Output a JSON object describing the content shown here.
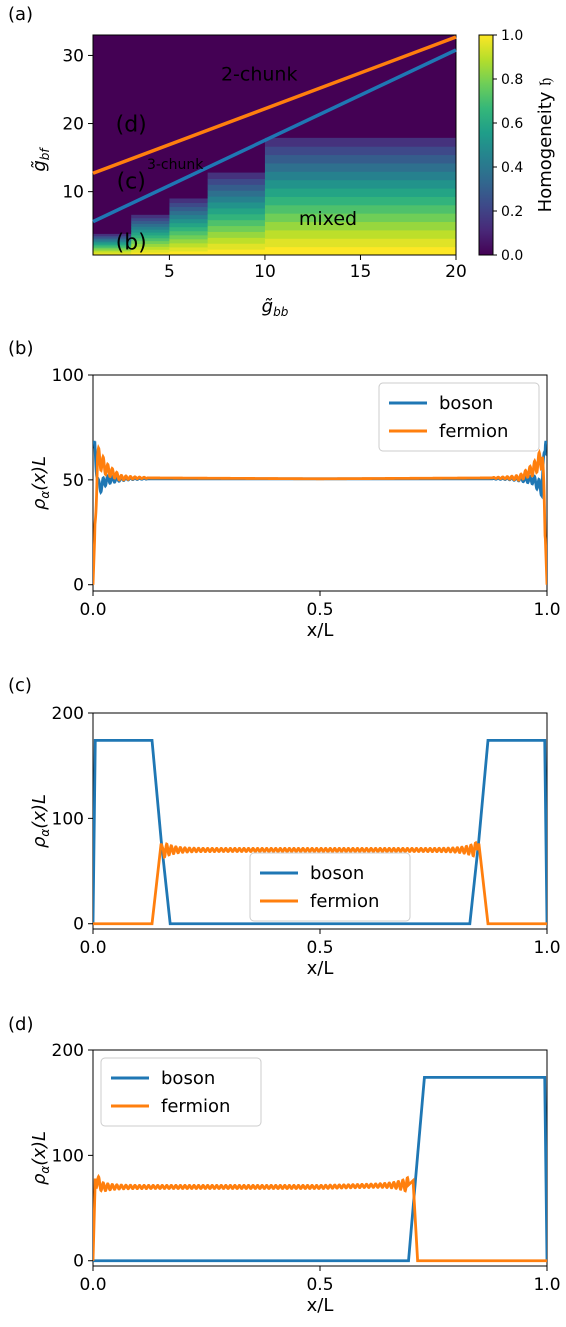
{
  "colors": {
    "boson": "#1f77b4",
    "fermion": "#ff7f0e",
    "boundary_upper": "#ff7f0e",
    "boundary_lower": "#1f77b4",
    "region_label": "#ffffff",
    "point_label": "#e31a1c",
    "viridis": [
      "#440154",
      "#482878",
      "#3e4989",
      "#31688e",
      "#26828e",
      "#1f9e89",
      "#35b779",
      "#6ece58",
      "#b5de2b",
      "#fde725"
    ]
  },
  "chart_data": [
    {
      "panel": "(a)",
      "type": "heatmap",
      "xlabel": "g̃_bb",
      "ylabel": "g̃_bf",
      "xlim": [
        1,
        20
      ],
      "ylim": [
        0.7,
        33
      ],
      "xticks": [
        "5",
        "10",
        "15",
        "20"
      ],
      "yticks": [
        "10",
        "20",
        "30"
      ],
      "colorbar": {
        "label": "Homogeneity 𝔥",
        "range": [
          0.0,
          1.0
        ],
        "ticks": [
          "0.0",
          "0.2",
          "0.4",
          "0.6",
          "0.8",
          "1.0"
        ]
      },
      "regions": [
        {
          "x_from": 1,
          "x_to": 3,
          "g_top": 3.8
        },
        {
          "x_from": 3,
          "x_to": 5,
          "g_top": 6.6
        },
        {
          "x_from": 5,
          "x_to": 7,
          "g_top": 9.0
        },
        {
          "x_from": 7,
          "x_to": 10,
          "g_top": 12.8
        },
        {
          "x_from": 10,
          "x_to": 20,
          "g_top": 17.9
        }
      ],
      "boundaries": [
        {
          "name": "2-chunk boundary",
          "color_key": "boundary_upper",
          "x": [
            1,
            20
          ],
          "y": [
            12.7,
            32.7
          ]
        },
        {
          "name": "3-chunk boundary",
          "color_key": "boundary_lower",
          "x": [
            1,
            20
          ],
          "y": [
            5.6,
            30.8
          ]
        }
      ],
      "region_labels": [
        {
          "text": "2-chunk",
          "x": 9.7,
          "y": 26.3,
          "size": "big"
        },
        {
          "text": "3-chunk",
          "x": 5.3,
          "y": 13.3,
          "size": "small"
        },
        {
          "text": "mixed",
          "x": 13.3,
          "y": 5.1,
          "size": "big"
        }
      ],
      "point_labels": [
        {
          "text": "(d)",
          "x": 3.0,
          "y": 18.8
        },
        {
          "text": "(c)",
          "x": 3.0,
          "y": 10.5
        },
        {
          "text": "(b)",
          "x": 3.0,
          "y": 1.5
        }
      ]
    },
    {
      "panel": "(b)",
      "type": "line",
      "xlabel": "x/L",
      "ylabel": "ρ_α(x)L",
      "xlim": [
        0,
        1
      ],
      "ylim": [
        -3,
        100
      ],
      "xticks": [
        0,
        0.5,
        1
      ],
      "xtick_labels": [
        "0.0",
        "0.5",
        "1.0"
      ],
      "yticks": [
        0,
        50,
        100
      ],
      "legend": "top-right",
      "series": [
        {
          "name": "boson",
          "color_key": "boson",
          "x": [
            0,
            0.003,
            0.012,
            0.03,
            0.08,
            0.5,
            0.92,
            0.97,
            0.988,
            0.997,
            1
          ],
          "y": [
            68,
            68,
            46,
            50,
            50.5,
            50.5,
            50.5,
            50,
            46,
            68,
            68
          ]
        },
        {
          "name": "fermion",
          "color_key": "fermion",
          "x": [
            0,
            0.01,
            0.03,
            0.06,
            0.5,
            0.94,
            0.97,
            0.99,
            1
          ],
          "y": [
            0,
            61,
            55,
            51,
            50.5,
            51,
            55,
            61,
            0
          ]
        }
      ]
    },
    {
      "panel": "(c)",
      "type": "line",
      "xlabel": "x/L",
      "ylabel": "ρ_α(x)L",
      "xlim": [
        0,
        1
      ],
      "ylim": [
        -5,
        200
      ],
      "xticks": [
        0,
        0.5,
        1
      ],
      "xtick_labels": [
        "0.0",
        "0.5",
        "1.0"
      ],
      "yticks": [
        0,
        100,
        200
      ],
      "legend": "bottom-center",
      "series": [
        {
          "name": "boson",
          "color_key": "boson",
          "x": [
            0,
            0.005,
            0.13,
            0.15,
            0.17,
            0.83,
            0.85,
            0.87,
            0.995,
            1
          ],
          "y": [
            0,
            174,
            174,
            80,
            0,
            0,
            80,
            174,
            174,
            0
          ]
        },
        {
          "name": "fermion",
          "color_key": "fermion",
          "x": [
            0,
            0.13,
            0.15,
            0.155,
            0.5,
            0.845,
            0.85,
            0.87,
            1
          ],
          "y": [
            0,
            0,
            76,
            70,
            70,
            70,
            76,
            0,
            0
          ]
        }
      ]
    },
    {
      "panel": "(d)",
      "type": "line",
      "xlabel": "x/L",
      "ylabel": "ρ_α(x)L",
      "xlim": [
        0,
        1
      ],
      "ylim": [
        -5,
        200
      ],
      "xticks": [
        0,
        0.5,
        1
      ],
      "xtick_labels": [
        "0.0",
        "0.5",
        "1.0"
      ],
      "yticks": [
        0,
        100,
        200
      ],
      "legend": "top-left",
      "series": [
        {
          "name": "boson",
          "color_key": "boson",
          "x": [
            0,
            0.695,
            0.715,
            0.73,
            0.995,
            1
          ],
          "y": [
            0,
            0,
            100,
            174,
            174,
            0
          ]
        },
        {
          "name": "fermion",
          "color_key": "fermion",
          "x": [
            0,
            0.005,
            0.02,
            0.5,
            0.695,
            0.705,
            0.715,
            1
          ],
          "y": [
            0,
            78,
            70,
            70,
            72,
            76,
            0,
            0
          ]
        }
      ]
    }
  ]
}
